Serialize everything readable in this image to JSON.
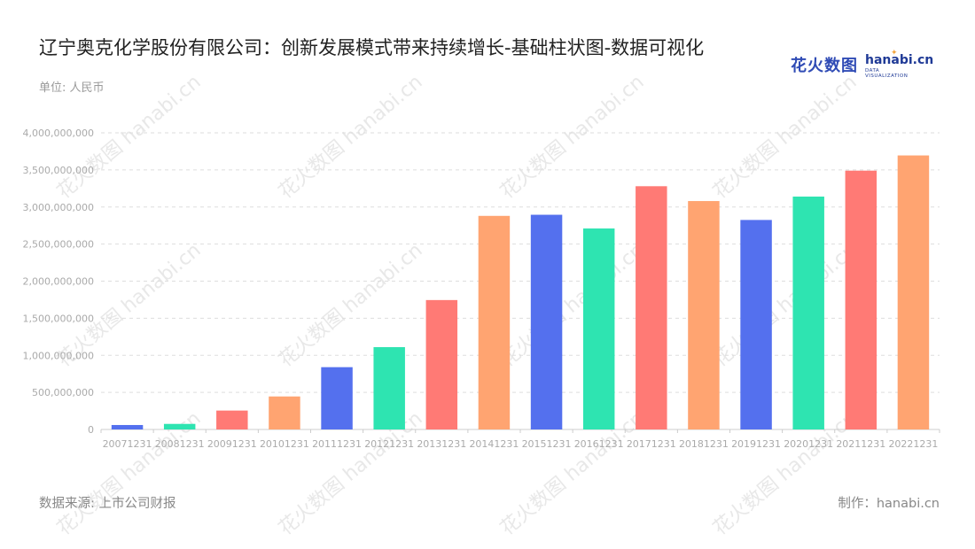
{
  "header": {
    "title": "辽宁奥克化学股份有限公司：创新发展模式带来持续增长-基础柱状图-数据可视化",
    "unit": "单位: 人民币"
  },
  "logo": {
    "cn": "花火数图",
    "en": "hanabi.cn",
    "sub": "DATA VISUALIZATION"
  },
  "footer": {
    "source": "数据来源: 上市公司财报",
    "credit": "制作：hanabi.cn"
  },
  "colors": {
    "palette": [
      "#5470ee",
      "#2ee4b1",
      "#ff7a75",
      "#ffa471"
    ],
    "grid": "#dddddd",
    "axis_text": "#aaaaaa"
  },
  "chart_data": {
    "type": "bar",
    "categories": [
      "20071231",
      "20081231",
      "20091231",
      "20101231",
      "20111231",
      "20121231",
      "20131231",
      "20141231",
      "20151231",
      "20161231",
      "20171231",
      "20181231",
      "20191231",
      "20201231",
      "20211231",
      "20221231"
    ],
    "values": [
      60000000,
      75000000,
      255000000,
      445000000,
      840000000,
      1110000000,
      1745000000,
      2880000000,
      2895000000,
      2710000000,
      3280000000,
      3080000000,
      2825000000,
      3140000000,
      3490000000,
      3695000000
    ],
    "ylim": [
      0,
      4000000000
    ],
    "yticks": [
      "0",
      "500,000,000",
      "1,000,000,000",
      "1,500,000,000",
      "2,000,000,000",
      "2,500,000,000",
      "3,000,000,000",
      "3,500,000,000",
      "4,000,000,000"
    ],
    "grid": true,
    "legend": "none"
  }
}
